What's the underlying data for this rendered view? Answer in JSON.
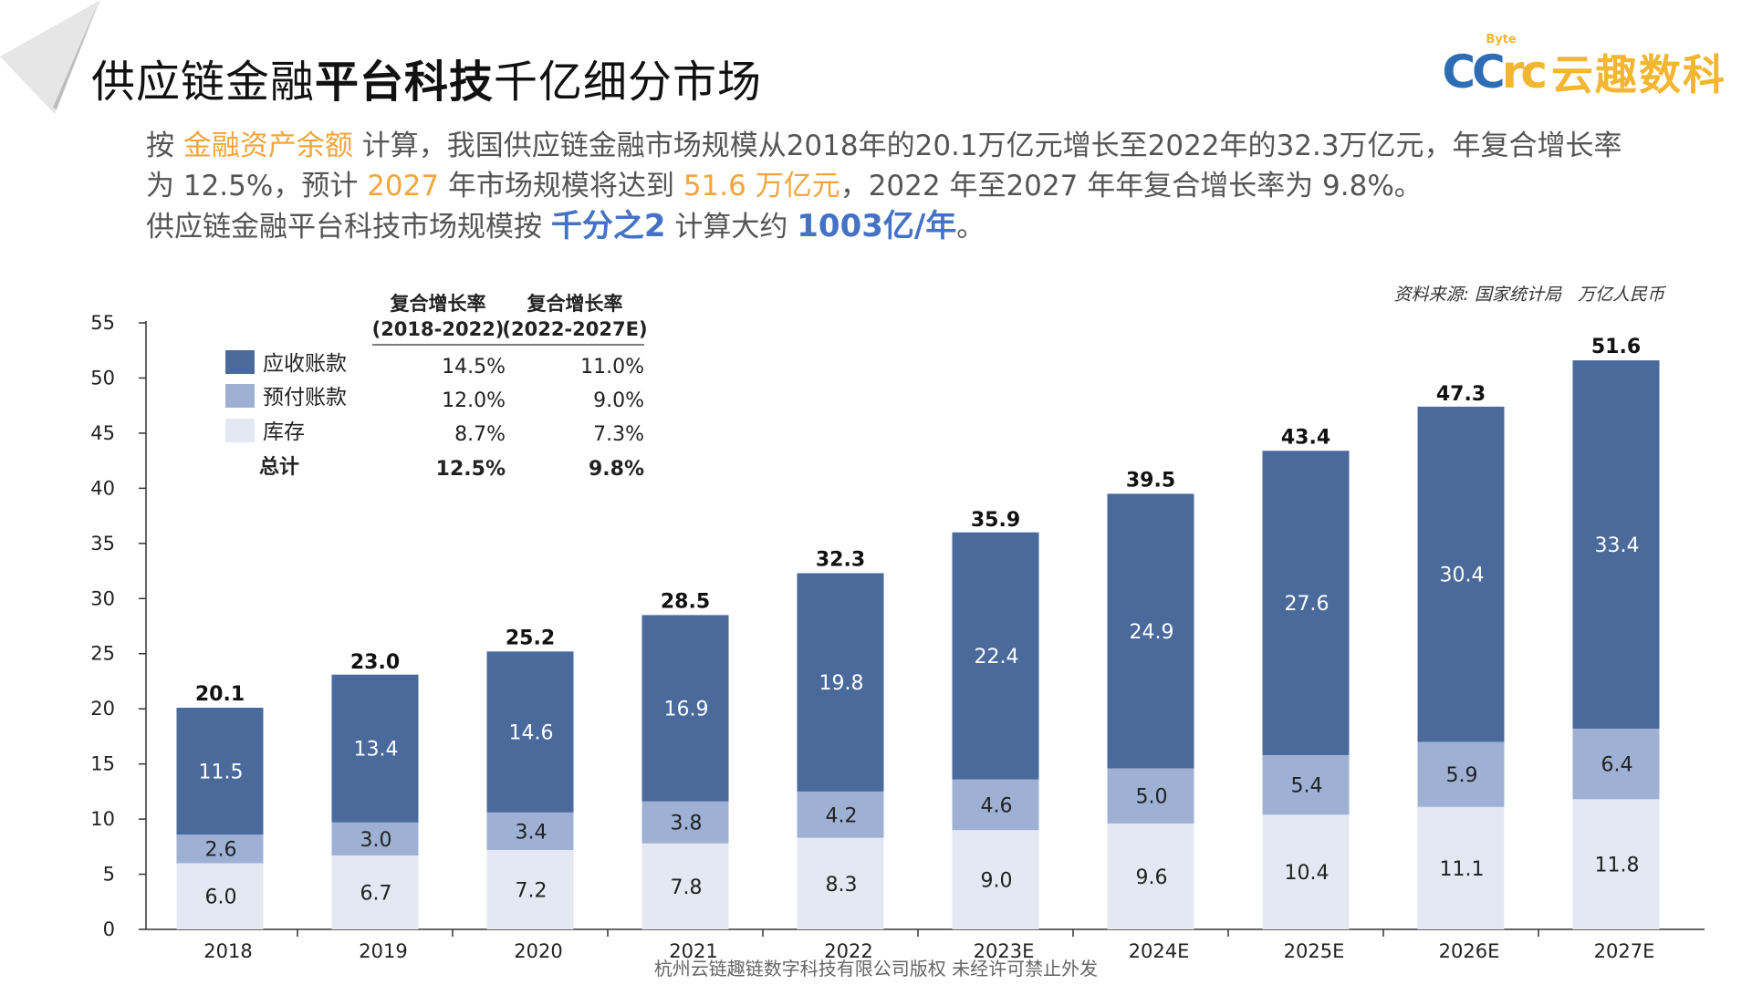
{
  "header": {
    "title_part1": "供应链金融",
    "title_bold": "平台科技",
    "title_part2": "千亿细分市场",
    "logo_mark_cc": "CC",
    "logo_mark_rc": "rc",
    "logo_byte": "Byte",
    "logo_text": "云趣数科"
  },
  "intro": {
    "l1_a": "按 ",
    "l1_orange": "金融资产余额",
    "l1_b": " 计算，我国供应链金融市场规模从2018年的20.1万亿元增长至2022年的32.3万亿元，年复合增长率",
    "l2_a": "为 12.5%，预计 ",
    "l2_orange1": "2027",
    "l2_b": " 年市场规模将达到 ",
    "l2_orange2": "51.6 万亿元",
    "l2_c": "，2022 年至2027 年年复合增长率为 9.8%。",
    "l3_a": "供应链金融平台科技市场规模按 ",
    "l3_blue1": "千分之2",
    "l3_b": " 计算大约 ",
    "l3_blue2": "1003亿/年",
    "l3_c": "。"
  },
  "source": {
    "label": "资料来源:  国家统计局",
    "unit": "万亿人民币"
  },
  "footer": {
    "text": "杭州云链趣链数字科技有限公司版权 未经许可禁止外发"
  },
  "chart_data": {
    "type": "bar",
    "stacked": true,
    "categories": [
      "2018",
      "2019",
      "2020",
      "2021",
      "2022",
      "2023E",
      "2024E",
      "2025E",
      "2026E",
      "2027E"
    ],
    "series": [
      {
        "name": "库存",
        "color": "#e3e8f2",
        "values": [
          6.0,
          6.7,
          7.2,
          7.8,
          8.3,
          9.0,
          9.6,
          10.4,
          11.1,
          11.8
        ]
      },
      {
        "name": "预付账款",
        "color": "#9eb1d4",
        "values": [
          2.6,
          3.0,
          3.4,
          3.8,
          4.2,
          4.6,
          5.0,
          5.4,
          5.9,
          6.4
        ]
      },
      {
        "name": "应收账款",
        "color": "#4a6a9c",
        "values": [
          11.5,
          13.4,
          14.6,
          16.9,
          19.8,
          22.4,
          24.9,
          27.6,
          30.4,
          33.4
        ]
      }
    ],
    "totals": [
      20.1,
      23.0,
      25.2,
      28.5,
      32.3,
      35.9,
      39.5,
      43.4,
      47.3,
      51.6
    ],
    "ylim": [
      0,
      55
    ],
    "yticks": [
      0,
      5,
      10,
      15,
      20,
      25,
      30,
      35,
      40,
      45,
      50,
      55
    ],
    "legend_placement": "top-left",
    "legend_order": [
      "应收账款",
      "预付账款",
      "库存"
    ],
    "cagr_table": {
      "col1_header": [
        "复合增长率",
        "(2018-2022)"
      ],
      "col2_header": [
        "复合增长率",
        "(2022-2027E)"
      ],
      "rows": [
        {
          "label": "应收账款",
          "c1": "14.5%",
          "c2": "11.0%"
        },
        {
          "label": "预付账款",
          "c1": "12.0%",
          "c2": "9.0%"
        },
        {
          "label": "库存",
          "c1": "8.7%",
          "c2": "7.3%"
        },
        {
          "label": "总计",
          "c1": "12.5%",
          "c2": "9.8%"
        }
      ]
    }
  }
}
